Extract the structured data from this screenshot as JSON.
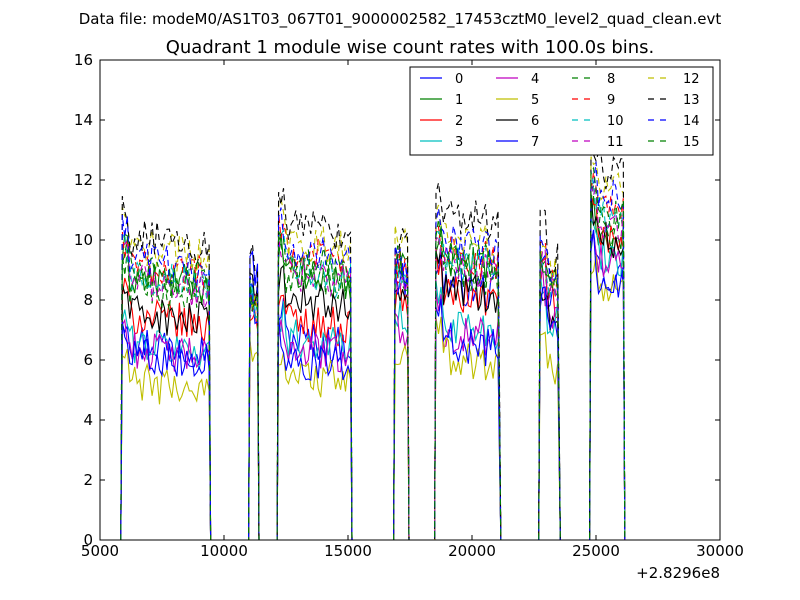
{
  "figure": {
    "suptitle": "Data file: modeM0/AS1T03_067T01_9000002582_17453cztM0_level2_quad_clean.evt",
    "title": "Quadrant 1 module wise count rates with 100.0s bins.",
    "offset_label": "+2.8296e8"
  },
  "chart_data": {
    "type": "line",
    "title": "Quadrant 1 module wise count rates with 100.0s bins.",
    "xlabel": "",
    "ylabel": "",
    "xlim": [
      5000,
      30000
    ],
    "ylim": [
      0,
      16
    ],
    "x_offset": 282960000,
    "xticks": [
      5000,
      10000,
      15000,
      20000,
      25000,
      30000
    ],
    "xtick_labels": [
      "5000",
      "10000",
      "15000",
      "20000",
      "25000",
      "30000"
    ],
    "yticks": [
      0,
      2,
      4,
      6,
      8,
      10,
      12,
      14,
      16
    ],
    "ytick_labels": [
      "0",
      "2",
      "4",
      "6",
      "8",
      "10",
      "12",
      "14",
      "16"
    ],
    "grid": false,
    "legend_position": "top-right",
    "legend_columns": 4,
    "segments": [
      {
        "start": 5900,
        "end": 9400
      },
      {
        "start": 11050,
        "end": 11350
      },
      {
        "start": 12200,
        "end": 15100
      },
      {
        "start": 16900,
        "end": 17400
      },
      {
        "start": 18550,
        "end": 21100
      },
      {
        "start": 22750,
        "end": 23500
      },
      {
        "start": 24800,
        "end": 26100
      }
    ],
    "series": [
      {
        "name": "0",
        "color": "#0000ff",
        "dash": "solid",
        "levels": [
          6.7,
          9.2,
          6.8,
          9.0,
          8.6,
          8.3,
          9.0
        ]
      },
      {
        "name": "1",
        "color": "#008000",
        "dash": "solid",
        "levels": [
          8.8,
          7.9,
          8.9,
          9.1,
          9.4,
          8.7,
          10.3
        ]
      },
      {
        "name": "2",
        "color": "#ff0000",
        "dash": "solid",
        "levels": [
          7.5,
          7.8,
          7.4,
          8.3,
          8.3,
          8.1,
          10.2
        ]
      },
      {
        "name": "3",
        "color": "#00bfbf",
        "dash": "solid",
        "levels": [
          6.6,
          8.0,
          6.8,
          7.5,
          7.3,
          7.6,
          9.7
        ]
      },
      {
        "name": "4",
        "color": "#bf00bf",
        "dash": "solid",
        "levels": [
          6.4,
          7.9,
          6.5,
          7.2,
          7.0,
          7.7,
          9.5
        ]
      },
      {
        "name": "5",
        "color": "#bfbf00",
        "dash": "solid",
        "levels": [
          5.3,
          6.3,
          5.6,
          6.3,
          6.2,
          6.1,
          8.5
        ]
      },
      {
        "name": "6",
        "color": "#000000",
        "dash": "solid",
        "levels": [
          7.6,
          8.3,
          8.1,
          8.2,
          8.5,
          7.8,
          10.2
        ]
      },
      {
        "name": "7",
        "color": "#0000ff",
        "dash": "solid",
        "levels": [
          6.3,
          8.1,
          6.1,
          8.7,
          6.7,
          7.5,
          8.9
        ]
      },
      {
        "name": "8",
        "color": "#008000",
        "dash": "dashed",
        "levels": [
          8.5,
          8.1,
          8.8,
          9.2,
          9.1,
          8.6,
          10.6
        ]
      },
      {
        "name": "9",
        "color": "#ff0000",
        "dash": "dashed",
        "levels": [
          9.2,
          8.3,
          9.6,
          9.3,
          9.6,
          8.9,
          11.2
        ]
      },
      {
        "name": "10",
        "color": "#00bfbf",
        "dash": "dashed",
        "levels": [
          8.9,
          8.2,
          9.0,
          9.1,
          9.4,
          8.7,
          10.9
        ]
      },
      {
        "name": "11",
        "color": "#bf00bf",
        "dash": "dashed",
        "levels": [
          8.7,
          8.0,
          8.9,
          8.9,
          9.2,
          8.5,
          10.8
        ]
      },
      {
        "name": "12",
        "color": "#bfbf00",
        "dash": "dashed",
        "levels": [
          9.8,
          8.4,
          10.1,
          10.0,
          10.2,
          9.2,
          12.0
        ]
      },
      {
        "name": "13",
        "color": "#000000",
        "dash": "dashed",
        "levels": [
          10.1,
          9.6,
          10.5,
          10.1,
          10.9,
          9.7,
          12.5
        ]
      },
      {
        "name": "14",
        "color": "#0000ff",
        "dash": "dashed",
        "levels": [
          9.4,
          8.6,
          9.7,
          9.6,
          10.0,
          9.1,
          11.6
        ]
      },
      {
        "name": "15",
        "color": "#008000",
        "dash": "dashed",
        "levels": [
          9.0,
          8.2,
          9.3,
          9.3,
          9.6,
          8.8,
          11.1
        ]
      }
    ]
  }
}
